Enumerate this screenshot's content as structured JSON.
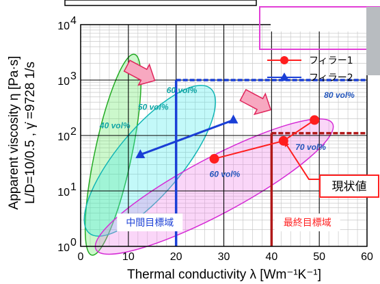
{
  "chart_data": {
    "type": "scatter",
    "xlabel": "Thermal conductivity λ [Wm⁻¹K⁻¹]",
    "ylabel_line1": "Apparent viscosity η [Pa·s]",
    "ylabel_line2": "L/D=10/0.5 , γ̇ =9728 1/s",
    "xlim": [
      0,
      60
    ],
    "ylim": [
      1,
      10000
    ],
    "yscale": "log",
    "grid": true,
    "x_ticks": [
      0,
      10,
      20,
      30,
      40,
      50,
      60
    ],
    "y_tick_labels": [
      {
        "base": "10",
        "exp": "0",
        "value": 1
      },
      {
        "base": "10",
        "exp": "1",
        "value": 10
      },
      {
        "base": "10",
        "exp": "2",
        "value": 100
      },
      {
        "base": "10",
        "exp": "3",
        "value": 1000
      },
      {
        "base": "10",
        "exp": "4",
        "value": 10000
      }
    ],
    "legend_position": "top-right",
    "series": [
      {
        "name": "フィラー1",
        "color": "#ff1e1e",
        "marker": "circle",
        "x": [
          28.0,
          42.5,
          49.0
        ],
        "y": [
          38,
          80,
          190
        ]
      },
      {
        "name": "フィラー2",
        "color": "#1a3fd6",
        "marker": "triangle",
        "x": [
          12.5,
          32.0
        ],
        "y": [
          45,
          190
        ]
      }
    ],
    "annotations": [
      {
        "text": "60 vol%",
        "color": "#11a5a5",
        "x": 18,
        "y": 580
      },
      {
        "text": "50 vol%",
        "color": "#11a5a5",
        "x": 12,
        "y": 290
      },
      {
        "text": "40 vol%",
        "color": "#11a5a5",
        "x": 4,
        "y": 135
      },
      {
        "text": "80 vol%",
        "color": "#2255bb",
        "x": 51,
        "y": 480
      },
      {
        "text": "70 vol%",
        "color": "#2255bb",
        "x": 45,
        "y": 55
      },
      {
        "text": "60 vol%",
        "color": "#2255bb",
        "x": 27,
        "y": 18
      }
    ],
    "regions": [
      {
        "label": "中間目標域",
        "color": "#1a3fd6",
        "x_max": 20,
        "y_max": 1000
      },
      {
        "label": "最終目標域",
        "color": "#ff1e1e",
        "x_min": 40,
        "y_max": 110
      }
    ],
    "callout": "現状値"
  }
}
